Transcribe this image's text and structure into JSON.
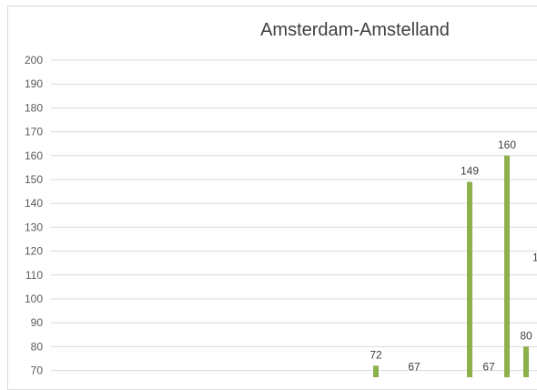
{
  "chart_data": {
    "type": "bar",
    "title": "Amsterdam-Amstelland",
    "xlabel": "",
    "ylabel": "",
    "ylim": [
      70,
      200
    ],
    "yticks": [
      70,
      80,
      90,
      100,
      110,
      120,
      130,
      140,
      150,
      160,
      170,
      180,
      190,
      200
    ],
    "grid": true,
    "bar_color": "#8db04a",
    "values": [
      72,
      67,
      149,
      67,
      160,
      80
    ],
    "partial_label": "1"
  }
}
